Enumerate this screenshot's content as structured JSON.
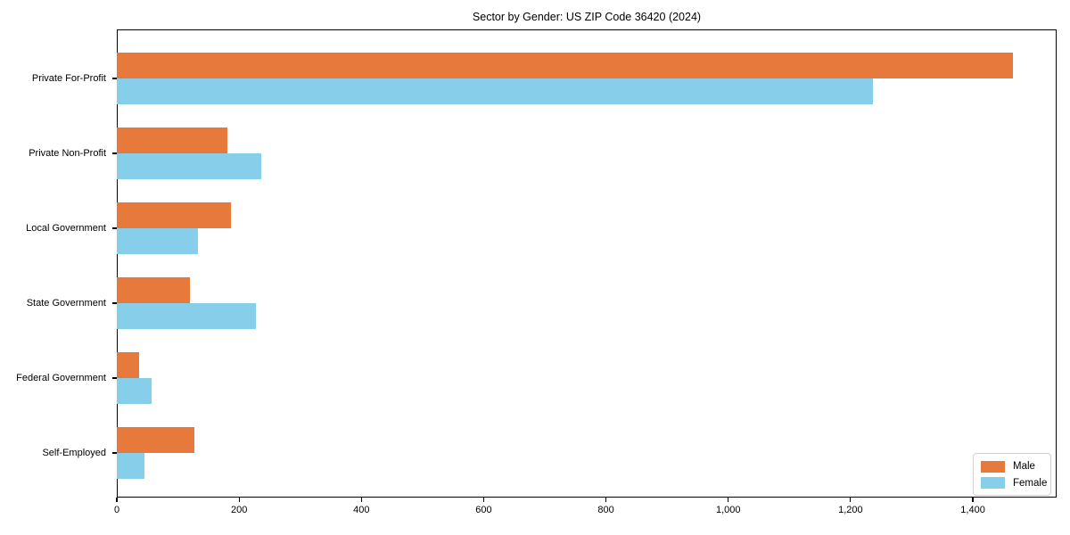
{
  "chart_data": {
    "type": "bar",
    "orientation": "horizontal",
    "title": "Sector by Gender: US ZIP Code 36420 (2024)",
    "categories": [
      "Private For-Profit",
      "Private Non-Profit",
      "Local Government",
      "State Government",
      "Federal Government",
      "Self-Employed"
    ],
    "series": [
      {
        "name": "Male",
        "color": "#e8793d",
        "values": [
          1465,
          181,
          187,
          119,
          37,
          127
        ]
      },
      {
        "name": "Female",
        "color": "#87ceeb",
        "values": [
          1236,
          236,
          133,
          228,
          57,
          45
        ]
      }
    ],
    "xlabel": "",
    "ylabel": "",
    "xlim": [
      0,
      1537
    ],
    "xticks": [
      0,
      200,
      400,
      600,
      800,
      1000,
      1200,
      1400
    ],
    "xtick_labels": [
      "0",
      "200",
      "400",
      "600",
      "800",
      "1,000",
      "1,200",
      "1,400"
    ],
    "grid": false,
    "legend": {
      "position": "lower right"
    }
  }
}
